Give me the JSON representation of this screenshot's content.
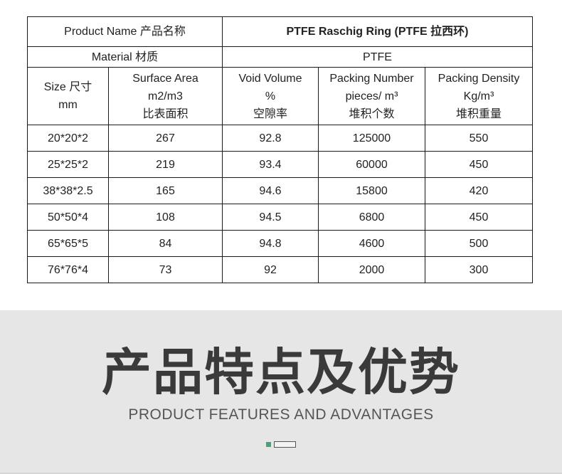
{
  "table": {
    "header": {
      "label": "Product Name 产品名称",
      "value": "PTFE Raschig Ring (PTFE 拉西环)"
    },
    "material": {
      "label": "Material 材质",
      "value": "PTFE"
    },
    "columns": [
      [
        "Size 尺寸",
        "mm"
      ],
      [
        "Surface Area",
        "m2/m3",
        "比表面积"
      ],
      [
        "Void Volume",
        "%",
        "空隙率"
      ],
      [
        "Packing Number",
        "pieces/ m³",
        "堆积个数"
      ],
      [
        "Packing Density",
        "Kg/m³",
        "堆积重量"
      ]
    ],
    "rows": [
      [
        "20*20*2",
        "267",
        "92.8",
        "125000",
        "550"
      ],
      [
        "25*25*2",
        "219",
        "93.4",
        "60000",
        "450"
      ],
      [
        "38*38*2.5",
        "165",
        "94.6",
        "15800",
        "420"
      ],
      [
        "50*50*4",
        "108",
        "94.5",
        "6800",
        "450"
      ],
      [
        "65*65*5",
        "84",
        "94.8",
        "4600",
        "500"
      ],
      [
        "76*76*4",
        "73",
        "92",
        "2000",
        "300"
      ]
    ]
  },
  "section": {
    "title_cn": "产品特点及优势",
    "title_en": "PRODUCT FEATURES AND ADVANTAGES"
  },
  "colors": {
    "section_background": "#e6e6e6",
    "indicator_active": "#4fa07a",
    "title_text": "#3a3a3a"
  }
}
